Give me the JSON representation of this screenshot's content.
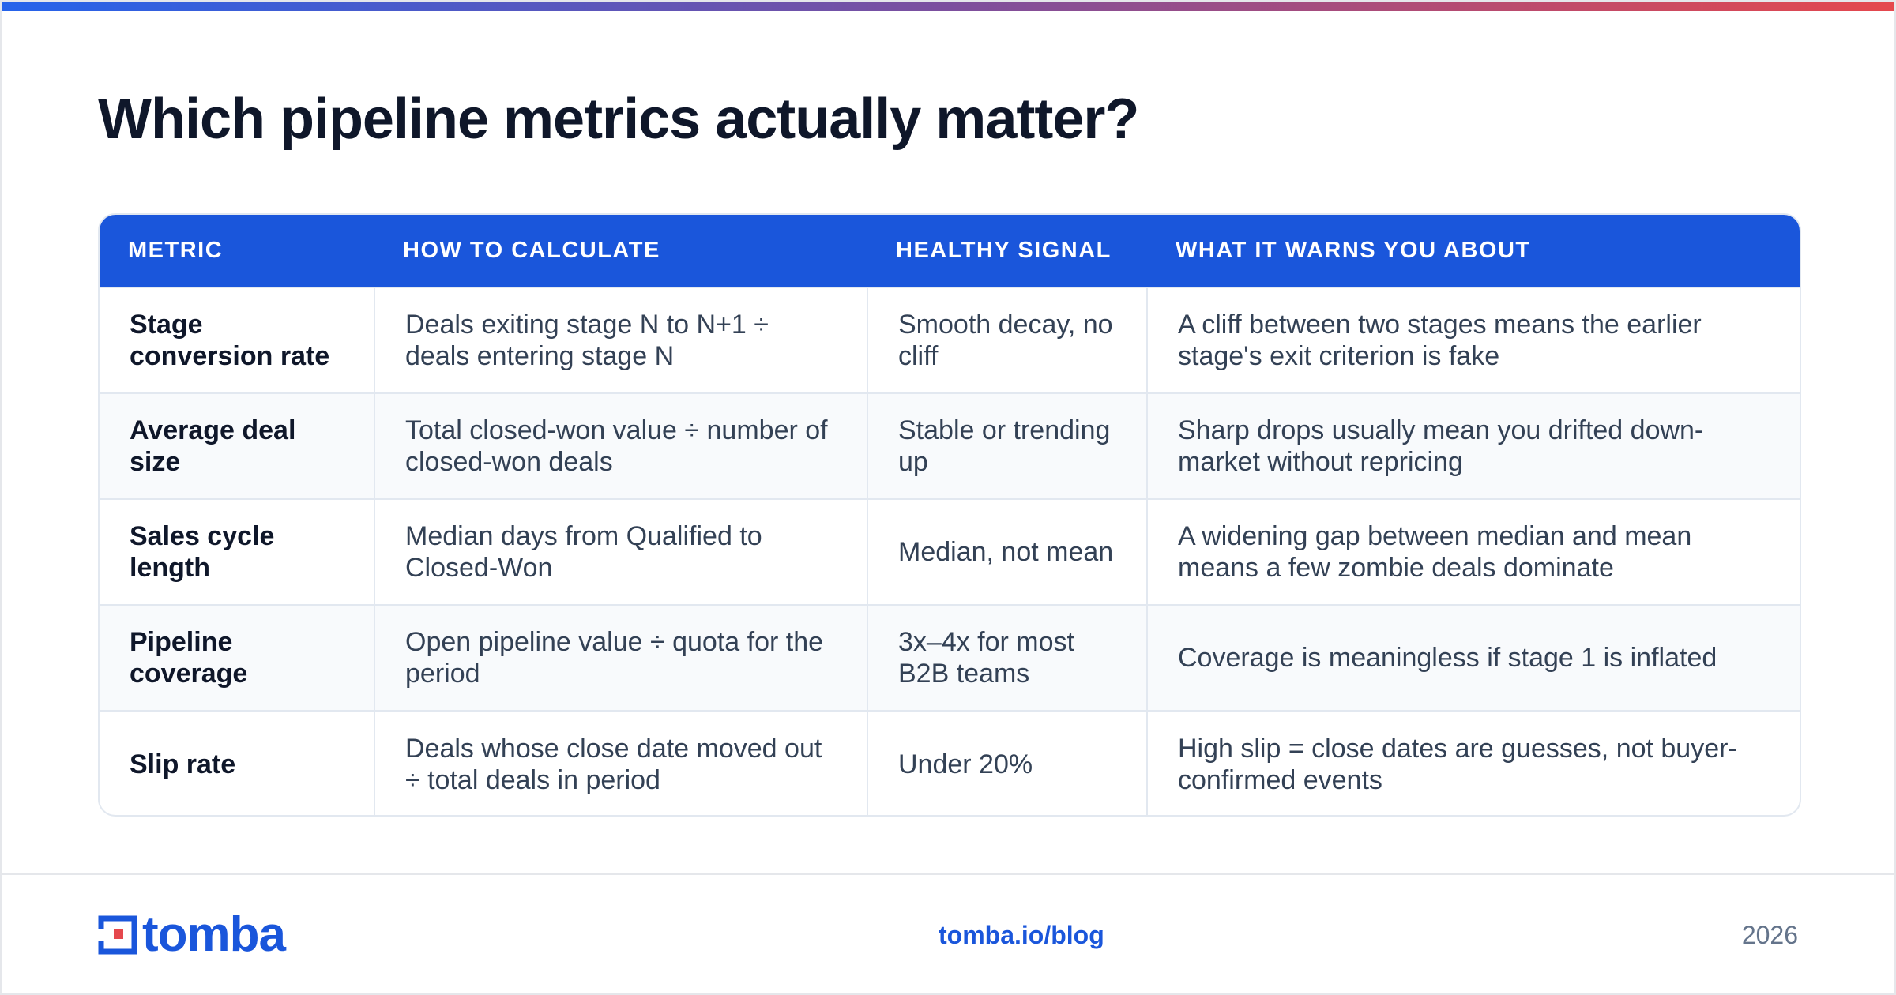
{
  "title": "Which pipeline metrics actually matter?",
  "table": {
    "headers": [
      "METRIC",
      "HOW TO CALCULATE",
      "HEALTHY SIGNAL",
      "WHAT IT WARNS YOU ABOUT"
    ],
    "rows": [
      {
        "metric": "Stage conversion rate",
        "calculate": "Deals exiting stage N to N+1 ÷ deals entering stage N",
        "signal": "Smooth decay, no cliff",
        "warns": "A cliff between two stages means the earlier stage's exit criterion is fake"
      },
      {
        "metric": "Average deal size",
        "calculate": "Total closed-won value ÷ number of closed-won deals",
        "signal": "Stable or trending up",
        "warns": "Sharp drops usually mean you drifted down-market without repricing"
      },
      {
        "metric": "Sales cycle length",
        "calculate": "Median days from Qualified to Closed-Won",
        "signal": "Median, not mean",
        "warns": "A widening gap between median and mean means a few zombie deals dominate"
      },
      {
        "metric": "Pipeline coverage",
        "calculate": "Open pipeline value ÷ quota for the period",
        "signal": "3x–4x for most B2B teams",
        "warns": "Coverage is meaningless if stage 1 is inflated"
      },
      {
        "metric": "Slip rate",
        "calculate": "Deals whose close date moved out ÷ total deals in period",
        "signal": "Under 20%",
        "warns": "High slip = close dates are guesses, not buyer-confirmed events"
      }
    ]
  },
  "footer": {
    "logo_text": "tomba",
    "link": "tomba.io/blog",
    "year": "2026"
  },
  "colors": {
    "accent": "#1a56db",
    "logo_red": "#e5484d"
  }
}
